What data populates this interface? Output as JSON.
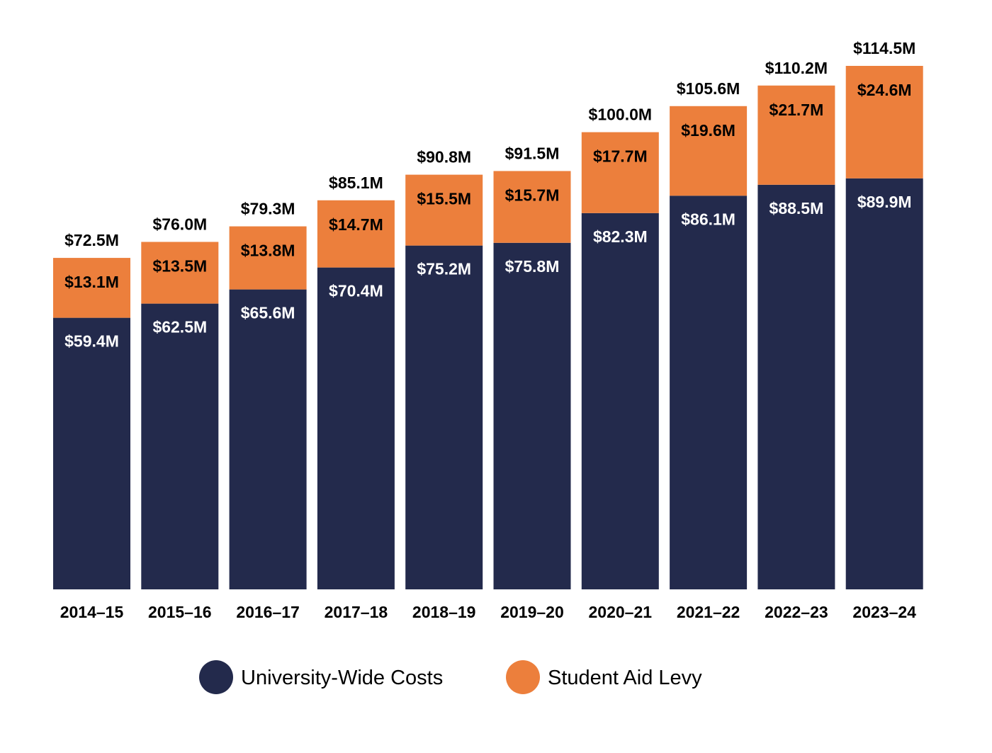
{
  "chart_data": {
    "type": "bar",
    "stacked": true,
    "categories": [
      "2014–15",
      "2015–16",
      "2016–17",
      "2017–18",
      "2018–19",
      "2019–20",
      "2020–21",
      "2021–22",
      "2022–23",
      "2023–24"
    ],
    "series": [
      {
        "name": "University-Wide Costs",
        "color": "#232a4c",
        "values": [
          59.4,
          62.5,
          65.6,
          70.4,
          75.2,
          75.8,
          82.3,
          86.1,
          88.5,
          89.9
        ],
        "labels": [
          "$59.4M",
          "$62.5M",
          "$65.6M",
          "$70.4M",
          "$75.2M",
          "$75.8M",
          "$82.3M",
          "$86.1M",
          "$88.5M",
          "$89.9M"
        ]
      },
      {
        "name": "Student Aid Levy",
        "color": "#ec7f3c",
        "values": [
          13.1,
          13.5,
          13.8,
          14.7,
          15.5,
          15.7,
          17.7,
          19.6,
          21.7,
          24.6
        ],
        "labels": [
          "$13.1M",
          "$13.5M",
          "$13.8M",
          "$14.7M",
          "$15.5M",
          "$15.7M",
          "$17.7M",
          "$19.6M",
          "$21.7M",
          "$24.6M"
        ]
      }
    ],
    "totals": {
      "values": [
        72.5,
        76.0,
        79.3,
        85.1,
        90.8,
        91.5,
        100.0,
        105.6,
        110.2,
        114.5
      ],
      "labels": [
        "$72.5M",
        "$76.0M",
        "$79.3M",
        "$85.1M",
        "$90.8M",
        "$91.5M",
        "$100.0M",
        "$105.6M",
        "$110.2M",
        "$114.5M"
      ]
    },
    "ylim": [
      0,
      114.5
    ],
    "grid": false,
    "legend_position": "bottom-center"
  }
}
